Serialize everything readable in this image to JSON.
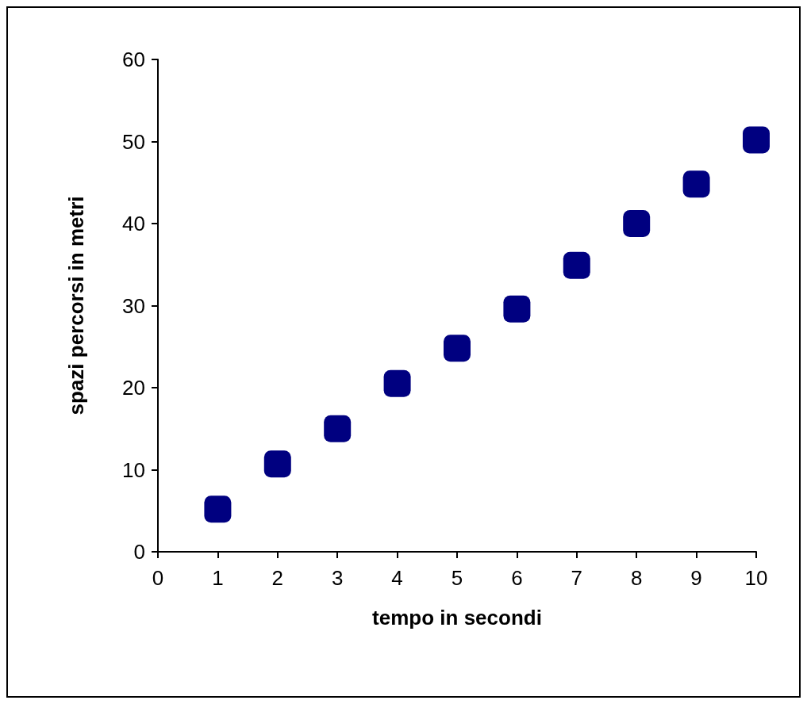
{
  "chart_data": {
    "type": "scatter",
    "xlabel": "tempo in secondi",
    "ylabel": "spazi percorsi in metri",
    "x": [
      1,
      2,
      3,
      4,
      5,
      6,
      7,
      8,
      9,
      10
    ],
    "values": [
      5.2,
      10.7,
      15,
      20.5,
      24.8,
      29.6,
      34.9,
      40,
      44.8,
      50.2
    ],
    "color": "#000080",
    "marker": "square",
    "xlim": [
      0,
      10
    ],
    "xticks": [
      0,
      1,
      2,
      3,
      4,
      5,
      6,
      7,
      8,
      9,
      10
    ],
    "ylim": [
      0,
      60
    ],
    "yticks": [
      0,
      10,
      20,
      30,
      40,
      50,
      60
    ],
    "grid": false
  }
}
